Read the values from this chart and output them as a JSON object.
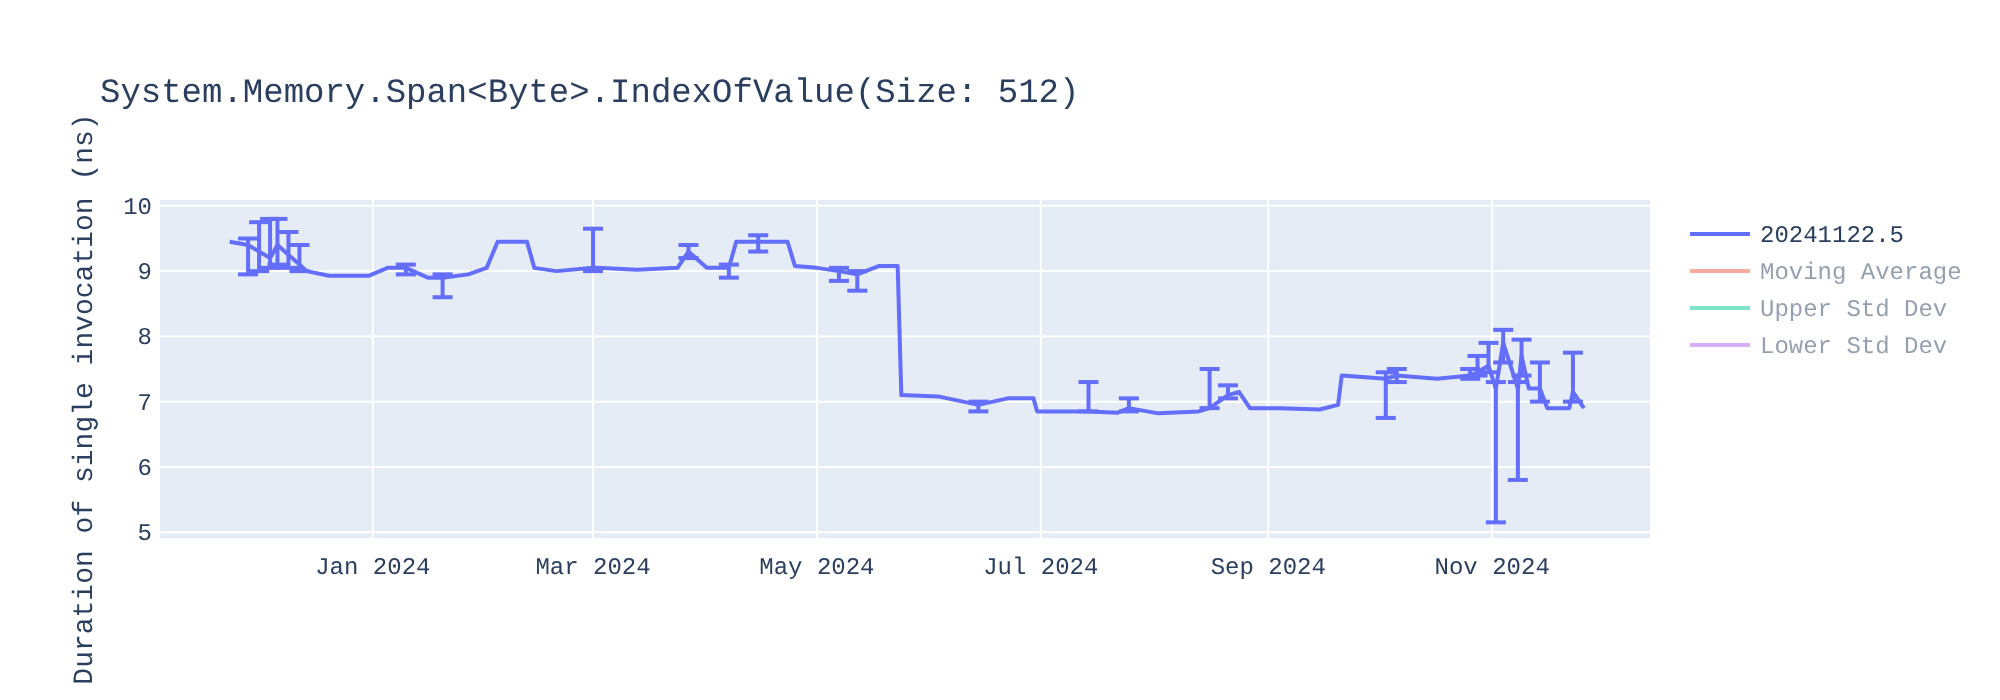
{
  "chart_data": {
    "type": "line",
    "title": "System.Memory.Span<Byte>.IndexOfValue(Size: 512)",
    "ylabel": "Duration of single invocation (ns)",
    "xlim": [
      "2023-11-04",
      "2024-12-14"
    ],
    "ylim": [
      4.91,
      10.09
    ],
    "xticks": [
      {
        "value": "2024-01-01",
        "label": "Jan 2024"
      },
      {
        "value": "2024-03-01",
        "label": "Mar 2024"
      },
      {
        "value": "2024-05-01",
        "label": "May 2024"
      },
      {
        "value": "2024-07-01",
        "label": "Jul 2024"
      },
      {
        "value": "2024-09-01",
        "label": "Sep 2024"
      },
      {
        "value": "2024-11-01",
        "label": "Nov 2024"
      }
    ],
    "yticks": [
      5,
      6,
      7,
      8,
      9,
      10
    ],
    "grid": true,
    "legend": "top right",
    "marker": "none",
    "series": [
      {
        "name": "20241122.5",
        "color": "#636efa",
        "x": [
          "2023-11-23",
          "2023-11-28",
          "2023-12-01",
          "2023-12-04",
          "2023-12-06",
          "2023-12-09",
          "2023-12-12",
          "2023-12-14",
          "2023-12-20",
          "2023-12-31",
          "2024-01-05",
          "2024-01-10",
          "2024-01-16",
          "2024-01-20",
          "2024-01-27",
          "2024-02-01",
          "2024-02-04",
          "2024-02-12",
          "2024-02-14",
          "2024-02-20",
          "2024-03-01",
          "2024-03-02",
          "2024-03-13",
          "2024-03-24",
          "2024-03-27",
          "2024-04-01",
          "2024-04-07",
          "2024-04-09",
          "2024-04-15",
          "2024-04-23",
          "2024-04-25",
          "2024-05-01",
          "2024-05-07",
          "2024-05-12",
          "2024-05-18",
          "2024-05-23",
          "2024-05-24",
          "2024-06-03",
          "2024-06-14",
          "2024-06-22",
          "2024-06-29",
          "2024-06-30",
          "2024-07-11",
          "2024-07-14",
          "2024-07-22",
          "2024-07-25",
          "2024-08-02",
          "2024-08-13",
          "2024-08-16",
          "2024-08-21",
          "2024-08-24",
          "2024-08-27",
          "2024-09-04",
          "2024-09-15",
          "2024-09-20",
          "2024-09-21",
          "2024-10-03",
          "2024-10-06",
          "2024-10-17",
          "2024-10-26",
          "2024-10-28",
          "2024-10-31",
          "2024-11-02",
          "2024-11-04",
          "2024-11-08",
          "2024-11-09",
          "2024-11-11",
          "2024-11-14",
          "2024-11-16",
          "2024-11-22",
          "2024-11-23",
          "2024-11-26"
        ],
        "values": [
          9.45,
          9.4,
          9.3,
          9.2,
          9.4,
          9.25,
          9.1,
          9.0,
          8.93,
          8.93,
          9.05,
          9.05,
          8.9,
          8.9,
          8.95,
          9.05,
          9.45,
          9.45,
          9.05,
          9.0,
          9.05,
          9.05,
          9.02,
          9.05,
          9.3,
          9.05,
          9.05,
          9.45,
          9.45,
          9.45,
          9.08,
          9.05,
          9.0,
          8.95,
          9.08,
          9.08,
          7.1,
          7.08,
          6.95,
          7.05,
          7.05,
          6.85,
          6.85,
          6.85,
          6.83,
          6.9,
          6.82,
          6.85,
          6.9,
          7.1,
          7.15,
          6.9,
          6.9,
          6.88,
          6.95,
          7.4,
          7.35,
          7.4,
          7.35,
          7.4,
          7.45,
          7.55,
          7.2,
          7.9,
          7.2,
          7.7,
          7.2,
          7.2,
          6.9,
          6.9,
          7.15,
          6.9
        ],
        "errors": [
          null,
          [
            8.95,
            9.5
          ],
          [
            9.0,
            9.75
          ],
          [
            9.05,
            9.8
          ],
          [
            9.1,
            9.8
          ],
          [
            9.05,
            9.6
          ],
          [
            9.0,
            9.4
          ],
          null,
          null,
          null,
          null,
          [
            8.95,
            9.1
          ],
          null,
          [
            8.6,
            8.95
          ],
          null,
          null,
          null,
          null,
          null,
          null,
          [
            9.0,
            9.65
          ],
          null,
          null,
          null,
          [
            9.2,
            9.4
          ],
          null,
          [
            8.9,
            9.1
          ],
          null,
          [
            9.3,
            9.55
          ],
          null,
          null,
          null,
          [
            8.85,
            9.05
          ],
          [
            8.7,
            9.0
          ],
          null,
          null,
          null,
          null,
          [
            6.85,
            7.0
          ],
          null,
          null,
          null,
          null,
          [
            6.85,
            7.3
          ],
          null,
          [
            6.85,
            7.05
          ],
          null,
          null,
          [
            6.9,
            7.5
          ],
          [
            7.05,
            7.25
          ],
          null,
          null,
          null,
          null,
          null,
          null,
          [
            6.75,
            7.45
          ],
          [
            7.3,
            7.5
          ],
          null,
          [
            7.35,
            7.5
          ],
          [
            7.4,
            7.7
          ],
          [
            7.45,
            7.9
          ],
          [
            5.15,
            7.3
          ],
          [
            7.6,
            8.1
          ],
          [
            5.8,
            7.3
          ],
          [
            7.4,
            7.95
          ],
          null,
          [
            7.0,
            7.6
          ],
          null,
          null,
          [
            7.0,
            7.75
          ],
          null
        ]
      },
      {
        "name": "Moving Average",
        "color": "#ef553b"
      },
      {
        "name": "Upper Std Dev",
        "color": "#00cc96"
      },
      {
        "name": "Lower Std Dev",
        "color": "#ab63fa"
      }
    ]
  }
}
